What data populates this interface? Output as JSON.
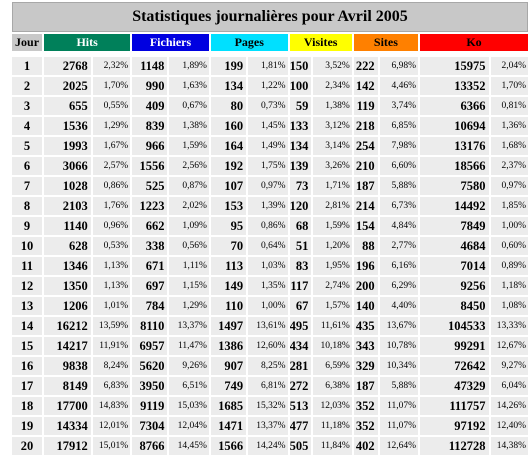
{
  "title": "Statistiques journalières pour Avril 2005",
  "columns": [
    {
      "label": "Jour",
      "bg": "#c8c8c8",
      "fg": "#000000"
    },
    {
      "label": "Hits",
      "bg": "#00805a",
      "fg": "#ffffff"
    },
    {
      "label": "Fichiers",
      "bg": "#0000e0",
      "fg": "#ffffff"
    },
    {
      "label": "Pages",
      "bg": "#00e0ff",
      "fg": "#000000"
    },
    {
      "label": "Visites",
      "bg": "#ffff00",
      "fg": "#000000"
    },
    {
      "label": "Sites",
      "bg": "#ff8000",
      "fg": "#000000"
    },
    {
      "label": "Ko",
      "bg": "#ff0000",
      "fg": "#000000"
    }
  ],
  "rows": [
    {
      "day": "1",
      "hits": "2768",
      "hits_pct": "2,32%",
      "files": "1148",
      "files_pct": "1,89%",
      "pages": "199",
      "pages_pct": "1,81%",
      "visits": "150",
      "visits_pct": "3,52%",
      "sites": "222",
      "sites_pct": "6,98%",
      "ko": "15975",
      "ko_pct": "2,04%"
    },
    {
      "day": "2",
      "hits": "2025",
      "hits_pct": "1,70%",
      "files": "990",
      "files_pct": "1,63%",
      "pages": "134",
      "pages_pct": "1,22%",
      "visits": "100",
      "visits_pct": "2,34%",
      "sites": "142",
      "sites_pct": "4,46%",
      "ko": "13352",
      "ko_pct": "1,70%"
    },
    {
      "day": "3",
      "hits": "655",
      "hits_pct": "0,55%",
      "files": "409",
      "files_pct": "0,67%",
      "pages": "80",
      "pages_pct": "0,73%",
      "visits": "59",
      "visits_pct": "1,38%",
      "sites": "119",
      "sites_pct": "3,74%",
      "ko": "6366",
      "ko_pct": "0,81%"
    },
    {
      "day": "4",
      "hits": "1536",
      "hits_pct": "1,29%",
      "files": "839",
      "files_pct": "1,38%",
      "pages": "160",
      "pages_pct": "1,45%",
      "visits": "133",
      "visits_pct": "3,12%",
      "sites": "218",
      "sites_pct": "6,85%",
      "ko": "10694",
      "ko_pct": "1,36%"
    },
    {
      "day": "5",
      "hits": "1993",
      "hits_pct": "1,67%",
      "files": "966",
      "files_pct": "1,59%",
      "pages": "164",
      "pages_pct": "1,49%",
      "visits": "134",
      "visits_pct": "3,14%",
      "sites": "254",
      "sites_pct": "7,98%",
      "ko": "13176",
      "ko_pct": "1,68%"
    },
    {
      "day": "6",
      "hits": "3066",
      "hits_pct": "2,57%",
      "files": "1556",
      "files_pct": "2,56%",
      "pages": "192",
      "pages_pct": "1,75%",
      "visits": "139",
      "visits_pct": "3,26%",
      "sites": "210",
      "sites_pct": "6,60%",
      "ko": "18566",
      "ko_pct": "2,37%"
    },
    {
      "day": "7",
      "hits": "1028",
      "hits_pct": "0,86%",
      "files": "525",
      "files_pct": "0,87%",
      "pages": "107",
      "pages_pct": "0,97%",
      "visits": "73",
      "visits_pct": "1,71%",
      "sites": "187",
      "sites_pct": "5,88%",
      "ko": "7580",
      "ko_pct": "0,97%"
    },
    {
      "day": "8",
      "hits": "2103",
      "hits_pct": "1,76%",
      "files": "1223",
      "files_pct": "2,02%",
      "pages": "153",
      "pages_pct": "1,39%",
      "visits": "120",
      "visits_pct": "2,81%",
      "sites": "214",
      "sites_pct": "6,73%",
      "ko": "14492",
      "ko_pct": "1,85%"
    },
    {
      "day": "9",
      "hits": "1140",
      "hits_pct": "0,96%",
      "files": "662",
      "files_pct": "1,09%",
      "pages": "95",
      "pages_pct": "0,86%",
      "visits": "68",
      "visits_pct": "1,59%",
      "sites": "154",
      "sites_pct": "4,84%",
      "ko": "7849",
      "ko_pct": "1,00%"
    },
    {
      "day": "10",
      "hits": "628",
      "hits_pct": "0,53%",
      "files": "338",
      "files_pct": "0,56%",
      "pages": "70",
      "pages_pct": "0,64%",
      "visits": "51",
      "visits_pct": "1,20%",
      "sites": "88",
      "sites_pct": "2,77%",
      "ko": "4684",
      "ko_pct": "0,60%"
    },
    {
      "day": "11",
      "hits": "1346",
      "hits_pct": "1,13%",
      "files": "671",
      "files_pct": "1,11%",
      "pages": "113",
      "pages_pct": "1,03%",
      "visits": "83",
      "visits_pct": "1,95%",
      "sites": "196",
      "sites_pct": "6,16%",
      "ko": "7014",
      "ko_pct": "0,89%"
    },
    {
      "day": "12",
      "hits": "1350",
      "hits_pct": "1,13%",
      "files": "697",
      "files_pct": "1,15%",
      "pages": "149",
      "pages_pct": "1,35%",
      "visits": "117",
      "visits_pct": "2,74%",
      "sites": "200",
      "sites_pct": "6,29%",
      "ko": "9256",
      "ko_pct": "1,18%"
    },
    {
      "day": "13",
      "hits": "1206",
      "hits_pct": "1,01%",
      "files": "784",
      "files_pct": "1,29%",
      "pages": "110",
      "pages_pct": "1,00%",
      "visits": "67",
      "visits_pct": "1,57%",
      "sites": "140",
      "sites_pct": "4,40%",
      "ko": "8450",
      "ko_pct": "1,08%"
    },
    {
      "day": "14",
      "hits": "16212",
      "hits_pct": "13,59%",
      "files": "8110",
      "files_pct": "13,37%",
      "pages": "1497",
      "pages_pct": "13,61%",
      "visits": "495",
      "visits_pct": "11,61%",
      "sites": "435",
      "sites_pct": "13,67%",
      "ko": "104533",
      "ko_pct": "13,33%"
    },
    {
      "day": "15",
      "hits": "14217",
      "hits_pct": "11,91%",
      "files": "6957",
      "files_pct": "11,47%",
      "pages": "1386",
      "pages_pct": "12,60%",
      "visits": "434",
      "visits_pct": "10,18%",
      "sites": "343",
      "sites_pct": "10,78%",
      "ko": "99291",
      "ko_pct": "12,67%"
    },
    {
      "day": "16",
      "hits": "9838",
      "hits_pct": "8,24%",
      "files": "5620",
      "files_pct": "9,26%",
      "pages": "907",
      "pages_pct": "8,25%",
      "visits": "281",
      "visits_pct": "6,59%",
      "sites": "329",
      "sites_pct": "10,34%",
      "ko": "72642",
      "ko_pct": "9,27%"
    },
    {
      "day": "17",
      "hits": "8149",
      "hits_pct": "6,83%",
      "files": "3950",
      "files_pct": "6,51%",
      "pages": "749",
      "pages_pct": "6,81%",
      "visits": "272",
      "visits_pct": "6,38%",
      "sites": "187",
      "sites_pct": "5,88%",
      "ko": "47329",
      "ko_pct": "6,04%"
    },
    {
      "day": "18",
      "hits": "17700",
      "hits_pct": "14,83%",
      "files": "9119",
      "files_pct": "15,03%",
      "pages": "1685",
      "pages_pct": "15,32%",
      "visits": "513",
      "visits_pct": "12,03%",
      "sites": "352",
      "sites_pct": "11,07%",
      "ko": "111757",
      "ko_pct": "14,26%"
    },
    {
      "day": "19",
      "hits": "14334",
      "hits_pct": "12,01%",
      "files": "7304",
      "files_pct": "12,04%",
      "pages": "1471",
      "pages_pct": "13,37%",
      "visits": "477",
      "visits_pct": "11,18%",
      "sites": "352",
      "sites_pct": "11,07%",
      "ko": "97192",
      "ko_pct": "12,40%"
    },
    {
      "day": "20",
      "hits": "17912",
      "hits_pct": "15,01%",
      "files": "8766",
      "files_pct": "14,45%",
      "pages": "1566",
      "pages_pct": "14,24%",
      "visits": "505",
      "visits_pct": "11,84%",
      "sites": "402",
      "sites_pct": "12,64%",
      "ko": "112728",
      "ko_pct": "14,38%"
    }
  ]
}
